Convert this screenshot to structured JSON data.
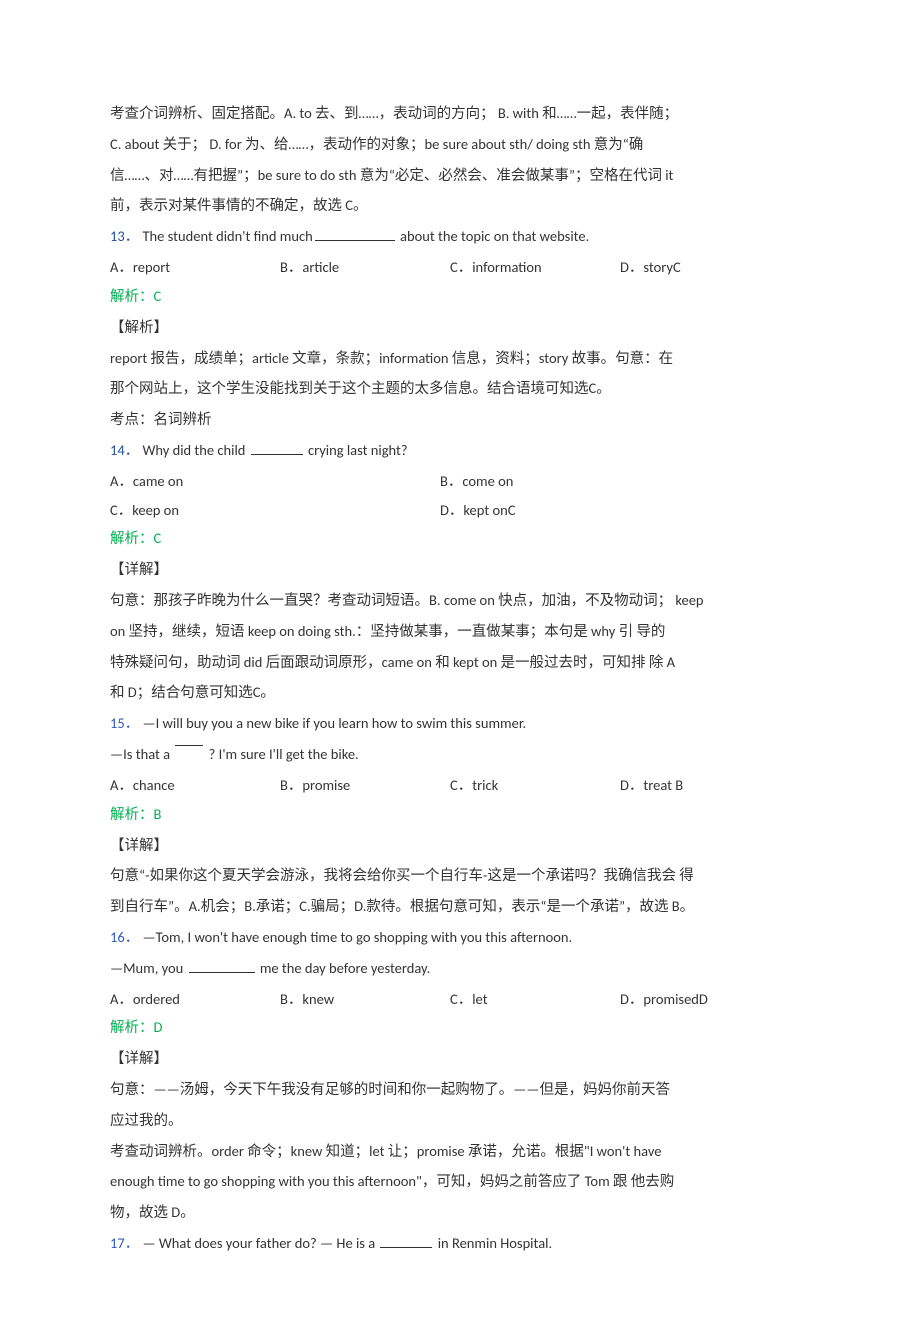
{
  "intro": {
    "l1": "考查介词辨析、固定搭配。A. to 去、到……，表动词的方向； B. with 和……一起，表伴随；",
    "l2": "C. about 关于； D. for 为、给……，表动作的对象；be sure about sth/ doing sth 意为“确",
    "l3": "信……、对……有把握”；be sure to do sth 意为“必定、必然会、准会做某事”；空格在代词 it",
    "l4": "前，表示对某件事情的不确定，故选 C。"
  },
  "q13": {
    "num": "13．",
    "stem": "The student didn't find much",
    "stem_tail": " about the topic on that website.",
    "A": "A．report",
    "B": "B．article",
    "C": "C．information",
    "D": "D．storyC",
    "ans": "解析：C",
    "exp_hdr": "【解析】",
    "e1": "report 报告，成绩单；article 文章，条款；information 信息，资料；story 故事。句意：在",
    "e2": "那个网站上，这个学生没能找到关于这个主题的太多信息。结合语境可知选C。",
    "e3": "考点：名词辨析"
  },
  "q14": {
    "num": "14．",
    "stem": "Why did the child ",
    "stem_tail": " crying last night?",
    "A": "A．came on",
    "B": "B．come on",
    "C": "C．keep on",
    "D": "D．kept onC",
    "ans": "解析：C",
    "exp_hdr": "【详解】",
    "e1": "句意：那孩子昨晚为什么一直哭？考查动词短语。B. come on 快点，加油，不及物动词； keep",
    "e2": "on 坚持，继续，短语 keep on doing sth.：坚持做某事，一直做某事；本句是 why 引 导的",
    "e3": "特殊疑问句，助动词 did 后面跟动词原形，came on 和 kept on 是一般过去时，可知排 除 A",
    "e4": "和 D；结合句意可知选C。"
  },
  "q15": {
    "num": "15．",
    "stem1": "—I will buy you a new bike if you learn how to swim this summer.",
    "stem2a": "—Is that a",
    "stem2b": "? I'm sure I'll get the bike.",
    "A": "A．chance",
    "B": "B．promise",
    "C": "C．trick",
    "D": "D．treat B",
    "ans": "解析：B",
    "exp_hdr": "【详解】",
    "e1": "句意“-如果你这个夏天学会游泳，我将会给你买一个自行车-这是一个承诺吗？我确信我会 得",
    "e2": "到自行车”。A.机会；B.承诺；C.骗局；D.款待。根据句意可知，表示“是一个承诺”，故选 B。"
  },
  "q16": {
    "num": "16．",
    "stem1": "—Tom, I won't have enough time to go shopping with you this afternoon.",
    "stem2a": "—Mum, you ",
    "stem2b": " me the day before yesterday.",
    "A": "A．ordered",
    "B": "B．knew",
    "C": "C．let",
    "D": "D．promisedD",
    "ans": "解析：D",
    "exp_hdr": "【详解】",
    "e1": "句意：——汤姆，今天下午我没有足够的时间和你一起购物了。——但是，妈妈你前天答",
    "e2": "应过我的。",
    "e3": "考查动词辨析。order 命令；knew 知道；let 让；promise 承诺，允诺。根据\"I won't have",
    "e4": "enough time to go shopping with you this afternoon\"，可知，妈妈之前答应了 Tom 跟 他去购",
    "e5": "物，故选 D。"
  },
  "q17": {
    "num": "17．",
    "stem_a": "— What does your father do? — He is a ",
    "stem_b": " in Renmin Hospital."
  }
}
